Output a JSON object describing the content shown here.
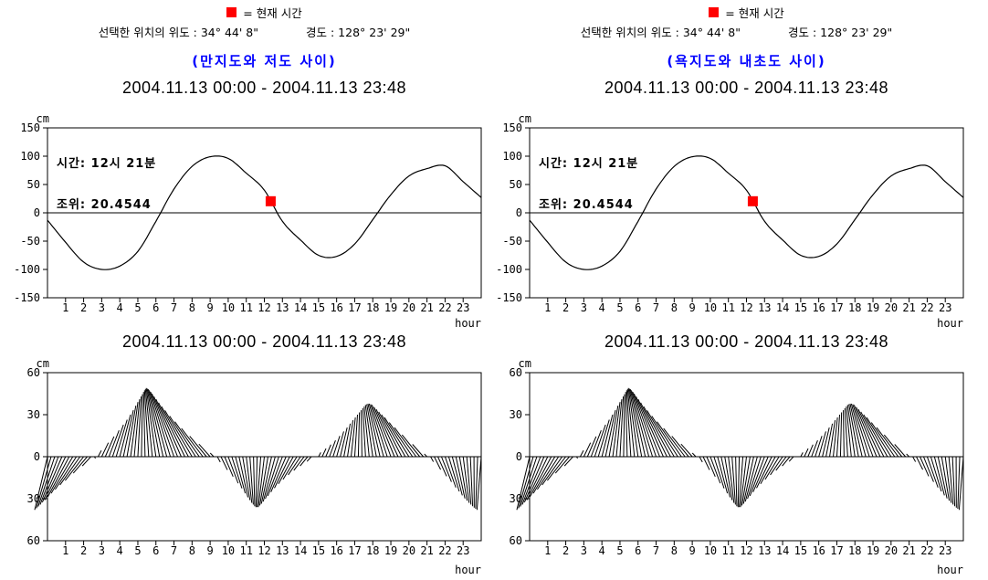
{
  "colors": {
    "background": "#FFFFFF",
    "line_black": "#000000",
    "station_title_blue": "#0000FF",
    "current_time_red": "#FF0000"
  },
  "header": {
    "legend_label": "= 현재 시간",
    "latitude_label": "선택한 위치의 위도 : 34° 44' 8\"",
    "longitude_label": "경도 : 128° 23' 29\""
  },
  "panels": [
    {
      "station_title": "(만지도와 저도 사이)",
      "date_range": "2004.11.13 00:00 - 2004.11.13 23:48",
      "annotation_time": "시간: 12시 21분",
      "annotation_level": "조위: 20.4544"
    },
    {
      "station_title": "(욕지도와 내초도 사이)",
      "date_range": "2004.11.13 00:00 - 2004.11.13 23:48",
      "annotation_time": "시간: 12시 21분",
      "annotation_level": "조위: 20.4544"
    }
  ],
  "chart_data": [
    {
      "type": "line",
      "name": "tide-level",
      "panels": [
        "left",
        "right"
      ],
      "title": "2004.11.13 00:00 - 2004.11.13 23:48",
      "xlabel": "hour",
      "ylabel": "cm",
      "xlim": [
        0,
        24
      ],
      "ylim": [
        -150,
        150
      ],
      "grid": false,
      "xticks": [
        1,
        2,
        3,
        4,
        5,
        6,
        7,
        8,
        9,
        10,
        11,
        12,
        13,
        14,
        15,
        16,
        17,
        18,
        19,
        20,
        21,
        22,
        23
      ],
      "ytick_values": [
        150,
        100,
        50,
        0,
        -50,
        -100,
        -150
      ],
      "ytick_labels": [
        "150",
        "100",
        "50",
        "0",
        "-50",
        "-100",
        "-150"
      ],
      "x_hours": [
        0,
        1,
        2,
        3,
        4,
        5,
        6,
        7,
        8,
        9,
        10,
        11,
        12,
        13,
        14,
        15,
        16,
        17,
        18,
        19,
        20,
        21,
        22,
        23,
        24
      ],
      "tide_cm": [
        -13,
        -52,
        -87,
        -100,
        -94,
        -68,
        -15,
        42,
        82,
        99,
        96,
        70,
        40,
        -15,
        -48,
        -75,
        -77,
        -55,
        -12,
        32,
        65,
        78,
        83,
        55,
        27
      ],
      "current_time_marker": {
        "hour": 12.35,
        "tide_cm": 20.45,
        "time_text": "12시 21분",
        "level_text": "20.4544"
      }
    },
    {
      "type": "stick",
      "name": "tidal-current",
      "panels": [
        "left",
        "right"
      ],
      "title": "2004.11.13 00:00 - 2004.11.13 23:48",
      "xlabel": "hour",
      "ylabel": "cm",
      "xlim": [
        0,
        24
      ],
      "ylim": [
        -60,
        60
      ],
      "grid": false,
      "xticks": [
        1,
        2,
        3,
        4,
        5,
        6,
        7,
        8,
        9,
        10,
        11,
        12,
        13,
        14,
        15,
        16,
        17,
        18,
        19,
        20,
        21,
        22,
        23
      ],
      "ytick_values": [
        60,
        30,
        0,
        -30,
        -60
      ],
      "ytick_labels": [
        "60",
        "30",
        "0",
        "30",
        "60"
      ],
      "x_step_hours": 0.5,
      "current_cm": [
        -38,
        -35,
        -31,
        -25,
        -17,
        -4,
        10,
        21,
        30,
        38,
        43,
        47,
        49,
        48,
        45,
        40,
        33,
        23,
        9,
        -7,
        -19,
        -28,
        -33,
        -36,
        -36,
        -33,
        -28,
        -21,
        -13,
        -5,
        3,
        10,
        18,
        25,
        30,
        34,
        37,
        38,
        37,
        33,
        28,
        19,
        2,
        -12,
        -22,
        -29,
        -33,
        -36,
        -38
      ],
      "zero_crossings_hours": [
        2.6,
        9.3,
        14.8,
        21.1
      ],
      "stick_interval_hours": 0.2
    }
  ]
}
